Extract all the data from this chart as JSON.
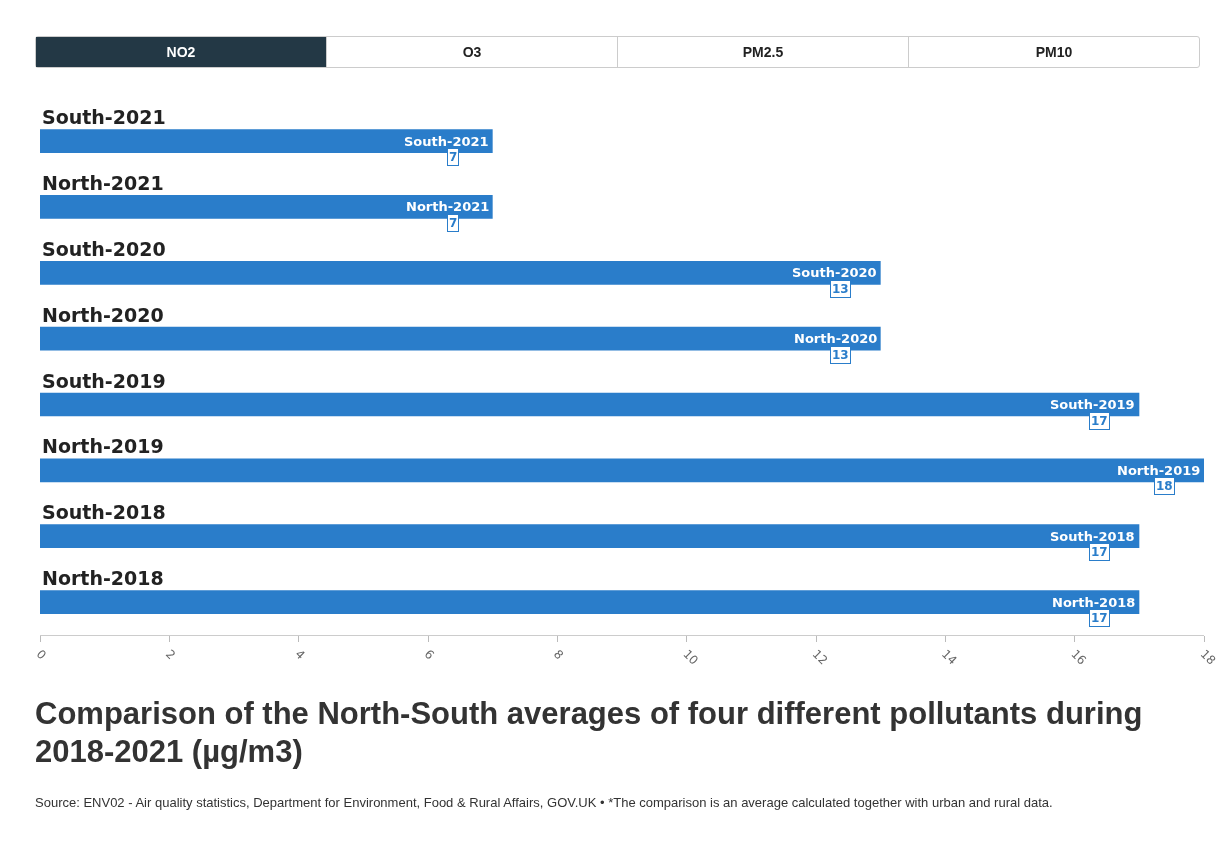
{
  "chart_data": {
    "type": "bar",
    "orientation": "horizontal",
    "title": "Comparison of the North-South averages of four different pollutants during 2018-2021 (µg/m3)",
    "categories": [
      "South-2021",
      "North-2021",
      "South-2020",
      "North-2020",
      "South-2019",
      "North-2019",
      "South-2018",
      "North-2018"
    ],
    "values": [
      7,
      7,
      13,
      13,
      17,
      18,
      17,
      17
    ],
    "color": "#2a7dca",
    "xlim": [
      0,
      18
    ],
    "xticks": [
      0,
      2,
      4,
      6,
      8,
      10,
      12,
      14,
      16,
      18
    ],
    "data_labels": true,
    "grid": false,
    "annotations": [
      "NO2",
      "O3",
      "PM2.5",
      "PM10",
      "Source: ENV02 - Air quality statistics, Department for Environment, Food & Rural Affairs, GOV.UK • *The comparison is an average calculated together with urban and rural data."
    ]
  }
}
